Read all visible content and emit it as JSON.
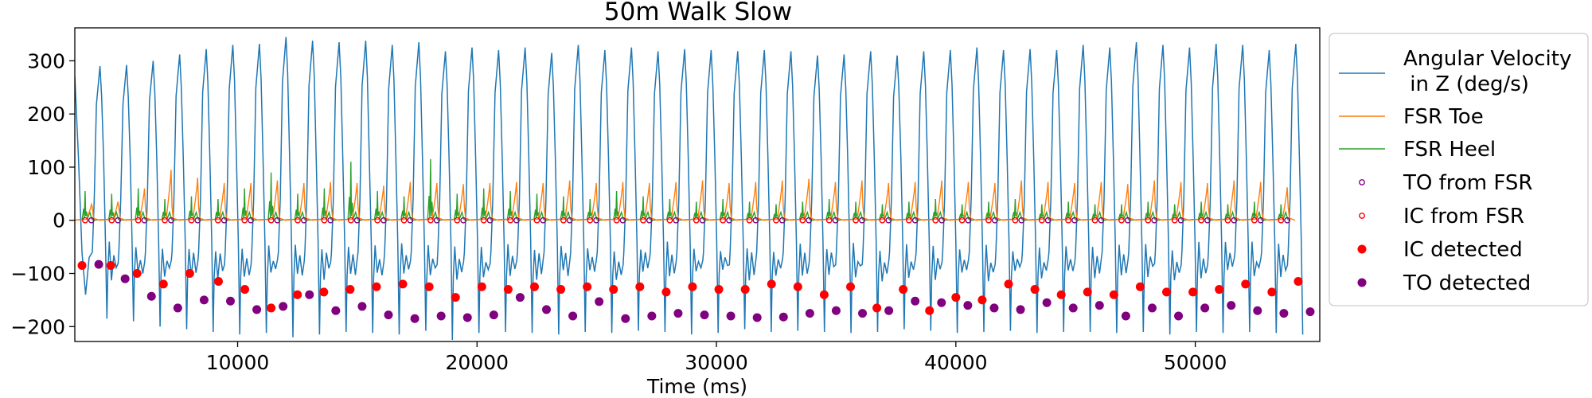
{
  "chart_data": {
    "type": "line",
    "title": "50m Walk Slow",
    "xlabel": "Time (ms)",
    "ylabel": "",
    "xlim": [
      3200,
      55200
    ],
    "ylim": [
      -228,
      362
    ],
    "xticks": [
      10000,
      20000,
      30000,
      40000,
      50000
    ],
    "yticks": [
      -200,
      -100,
      0,
      100,
      200,
      300
    ],
    "grid": false,
    "legend_position": "outside-right",
    "series": [
      {
        "name": "Angular Velocity\n in Z (deg/s)",
        "kind": "line",
        "color": "#1f77b4",
        "stride_ms": 1110,
        "first_peak_ms": 4250,
        "peaks": [
          290,
          292,
          300,
          312,
          322,
          330,
          332,
          345,
          338,
          335,
          338,
          330,
          335,
          318,
          325,
          320,
          325,
          315,
          330,
          320,
          325,
          318,
          322,
          320,
          318,
          320,
          318,
          310,
          312,
          318,
          310,
          318,
          320,
          325,
          320,
          322,
          320,
          330,
          325,
          335,
          330,
          325,
          332,
          330,
          320,
          332
        ],
        "troughs": [
          -185,
          -190,
          -200,
          -205,
          -210,
          -215,
          -212,
          -220,
          -215,
          -210,
          -212,
          -215,
          -208,
          -225,
          -212,
          -210,
          -212,
          -215,
          -210,
          -212,
          -208,
          -210,
          -215,
          -212,
          -205,
          -210,
          -208,
          -210,
          -212,
          -210,
          -205,
          -208,
          -212,
          -210,
          -208,
          -212,
          -210,
          -210,
          -212,
          -210,
          -215,
          -210,
          -212,
          -210,
          -212,
          -215
        ],
        "values_note": ""
      },
      {
        "name": "FSR Toe",
        "kind": "line",
        "color": "#ff7f0e",
        "peaks": [
          30,
          35,
          60,
          95,
          80,
          70,
          70,
          75,
          70,
          72,
          70,
          65,
          72,
          70,
          68,
          70,
          72,
          70,
          75,
          70,
          72,
          70,
          72,
          75,
          70,
          72,
          75,
          78,
          72,
          75,
          70,
          72,
          75,
          72,
          70,
          75,
          72,
          70,
          72,
          68,
          75,
          72,
          70,
          75,
          72,
          62
        ]
      },
      {
        "name": "FSR Heel",
        "kind": "line",
        "color": "#2ca02c",
        "peaks": [
          55,
          50,
          60,
          40,
          45,
          40,
          60,
          90,
          50,
          60,
          110,
          55,
          45,
          115,
          50,
          60,
          55,
          50,
          45,
          40,
          55,
          45,
          40,
          35,
          40,
          35,
          30,
          35,
          40,
          35,
          30,
          35,
          40,
          30,
          35,
          40,
          30,
          35,
          30,
          30,
          35,
          30,
          35,
          30,
          35,
          30
        ]
      },
      {
        "name": "TO from FSR",
        "kind": "marker-hollow",
        "color": "#800080"
      },
      {
        "name": "IC from FSR",
        "kind": "marker-hollow",
        "color": "#ff0000"
      },
      {
        "name": "IC detected",
        "kind": "marker-filled",
        "color": "#ff0000",
        "x": [
          3500,
          4700,
          5800,
          6900,
          8000,
          9200,
          10300,
          11400,
          12500,
          13600,
          14700,
          15800,
          16900,
          18000,
          19100,
          20200,
          21300,
          22400,
          23500,
          24600,
          25700,
          26800,
          27900,
          29000,
          30100,
          31200,
          32300,
          33400,
          34500,
          35600,
          36700,
          37800,
          38900,
          40000,
          41100,
          42200,
          43300,
          44400,
          45500,
          46600,
          47700,
          48800,
          49900,
          51000,
          52100,
          53200,
          54300
        ],
        "y": [
          -85,
          -85,
          -100,
          -120,
          -100,
          -115,
          -130,
          -165,
          -140,
          -135,
          -130,
          -125,
          -120,
          -125,
          -145,
          -125,
          -130,
          -125,
          -130,
          -125,
          -130,
          -125,
          -135,
          -125,
          -130,
          -130,
          -120,
          -125,
          -140,
          -125,
          -165,
          -130,
          -170,
          -145,
          -150,
          -120,
          -130,
          -140,
          -135,
          -140,
          -125,
          -135,
          -135,
          -130,
          -120,
          -135,
          -115
        ]
      },
      {
        "name": "TO detected",
        "kind": "marker-filled",
        "color": "#800080",
        "x": [
          4200,
          5300,
          6400,
          7500,
          8600,
          9700,
          10800,
          11900,
          13000,
          14100,
          15200,
          16300,
          17400,
          18500,
          19600,
          20700,
          21800,
          22900,
          24000,
          25100,
          26200,
          27300,
          28400,
          29500,
          30600,
          31700,
          32800,
          33900,
          35000,
          36100,
          37200,
          38300,
          39400,
          40500,
          41600,
          42700,
          43800,
          44900,
          46000,
          47100,
          48200,
          49300,
          50400,
          51500,
          52600,
          53700,
          54800
        ],
        "y": [
          -83,
          -110,
          -143,
          -165,
          -150,
          -152,
          -168,
          -162,
          -140,
          -170,
          -162,
          -178,
          -185,
          -180,
          -183,
          -178,
          -145,
          -168,
          -180,
          -153,
          -185,
          -180,
          -175,
          -178,
          -180,
          -183,
          -182,
          -175,
          -170,
          -175,
          -170,
          -152,
          -155,
          -160,
          -165,
          -168,
          -155,
          -165,
          -160,
          -180,
          -165,
          -180,
          -165,
          -160,
          -170,
          -175,
          -172
        ]
      }
    ]
  }
}
